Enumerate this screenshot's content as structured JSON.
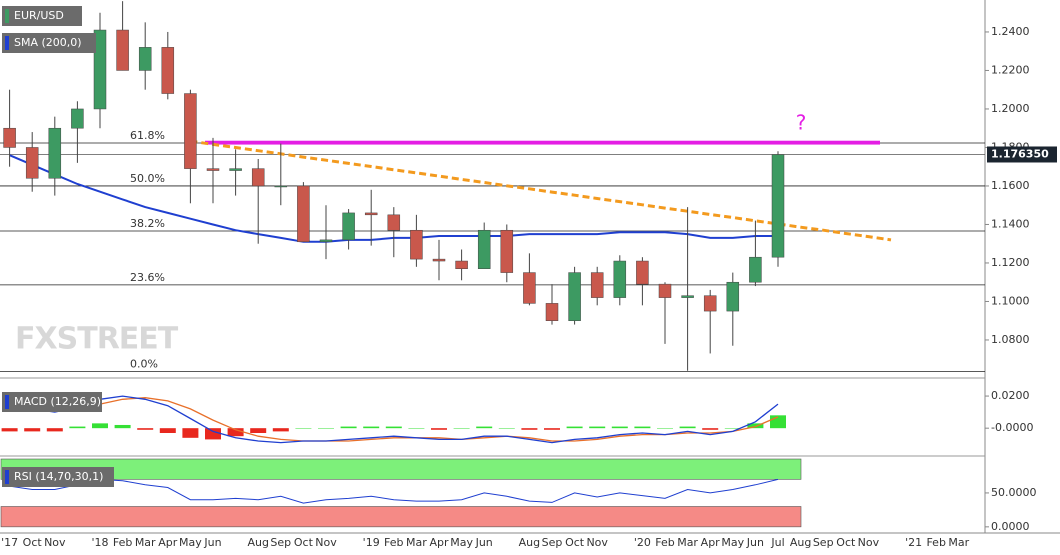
{
  "chart_data": {
    "type": "candlestick",
    "title": "EUR/USD",
    "watermark": "FXSTREET",
    "annotation": "?",
    "categories": [
      "'17",
      "Oct",
      "Nov",
      null,
      "'18",
      "Feb",
      "Mar",
      "Apr",
      "May",
      "Jun",
      null,
      "Aug",
      "Sep",
      "Oct",
      "Nov",
      null,
      "'19",
      "Feb",
      "Mar",
      "Apr",
      "May",
      "Jun",
      null,
      "Aug",
      "Sep",
      "Oct",
      "Nov",
      null,
      "'20",
      "Feb",
      "Mar",
      "Apr",
      "May",
      "Jun",
      "Jul",
      "Aug",
      "Sep",
      "Oct",
      "Nov",
      null,
      "'21",
      "Feb",
      "Mar"
    ],
    "open": [
      1.19,
      1.18,
      1.164,
      1.19,
      1.2,
      1.241,
      1.22,
      1.232,
      1.208,
      1.169,
      1.168,
      1.169,
      1.16,
      1.16,
      1.131,
      1.132,
      1.146,
      1.145,
      1.137,
      1.122,
      1.121,
      1.117,
      1.137,
      1.115,
      1.099,
      1.09,
      1.115,
      1.102,
      1.121,
      1.109,
      1.102,
      1.103,
      1.095,
      1.11,
      1.123,
      null,
      null,
      null,
      null,
      null,
      null,
      null,
      null
    ],
    "high": [
      1.21,
      1.188,
      1.196,
      1.204,
      1.25,
      1.256,
      1.245,
      1.24,
      1.21,
      1.185,
      1.179,
      1.174,
      1.182,
      1.162,
      1.15,
      1.148,
      1.158,
      1.149,
      1.145,
      1.132,
      1.127,
      1.141,
      1.14,
      1.125,
      1.109,
      1.118,
      1.118,
      1.124,
      1.123,
      1.11,
      1.149,
      1.106,
      1.115,
      1.142,
      1.178,
      null,
      null,
      null,
      null,
      null,
      null,
      null,
      null
    ],
    "low": [
      1.17,
      1.157,
      1.155,
      1.172,
      1.19,
      1.22,
      1.21,
      1.205,
      1.151,
      1.151,
      1.155,
      1.13,
      1.15,
      1.132,
      1.122,
      1.127,
      1.129,
      1.123,
      1.118,
      1.111,
      1.111,
      1.118,
      1.11,
      1.098,
      1.088,
      1.088,
      1.098,
      1.098,
      1.098,
      1.078,
      1.064,
      1.073,
      1.077,
      1.108,
      1.118,
      null,
      null,
      null,
      null,
      null,
      null,
      null,
      null
    ],
    "close": [
      1.18,
      1.164,
      1.19,
      1.2,
      1.241,
      1.22,
      1.232,
      1.208,
      1.169,
      1.168,
      1.169,
      1.16,
      1.16,
      1.131,
      1.132,
      1.146,
      1.145,
      1.137,
      1.122,
      1.121,
      1.117,
      1.137,
      1.115,
      1.099,
      1.09,
      1.115,
      1.102,
      1.121,
      1.109,
      1.102,
      1.103,
      1.095,
      1.11,
      1.123,
      1.1763,
      null,
      null,
      null,
      null,
      null,
      null,
      null,
      null
    ],
    "up_color": "#3d9a62",
    "down_color": "#c9584c",
    "ylim": [
      1.0618,
      1.2566
    ],
    "yticks": [
      {
        "value": 1.24,
        "label": "1.2400"
      },
      {
        "value": 1.22,
        "label": "1.2200"
      },
      {
        "value": 1.2,
        "label": "1.2000"
      },
      {
        "value": 1.18,
        "label": "1.1800"
      },
      {
        "value": 1.16,
        "label": "1.1600"
      },
      {
        "value": 1.14,
        "label": "1.1400"
      },
      {
        "value": 1.12,
        "label": "1.1200"
      },
      {
        "value": 1.1,
        "label": "1.1000"
      },
      {
        "value": 1.08,
        "label": "1.0800"
      }
    ],
    "current_price": {
      "value": 1.17635,
      "label": "1.176350"
    },
    "sma": {
      "name": "SMA (200,0)",
      "color": "#1f3fd0",
      "values": [
        1.176,
        1.171,
        1.166,
        1.161,
        1.157,
        1.153,
        1.149,
        1.146,
        1.143,
        1.14,
        1.137,
        1.135,
        1.133,
        1.131,
        1.131,
        1.132,
        1.132,
        1.133,
        1.133,
        1.134,
        1.134,
        1.134,
        1.134,
        1.135,
        1.135,
        1.135,
        1.135,
        1.136,
        1.136,
        1.136,
        1.135,
        1.133,
        1.133,
        1.134,
        1.134,
        null,
        null,
        null,
        null,
        null,
        null,
        null,
        null
      ]
    },
    "fib_levels": [
      {
        "value": 1.1823,
        "label": "61.8%"
      },
      {
        "value": 1.16,
        "label": "50.0%"
      },
      {
        "value": 1.1366,
        "label": "38.2%"
      },
      {
        "value": 1.1086,
        "label": "23.6%"
      },
      {
        "value": 1.0636,
        "label": "0.0%"
      }
    ],
    "resistance_zone": {
      "values": [
        1.1815,
        1.1835
      ],
      "color": "#e41ee4"
    },
    "trend_line": {
      "color": "#f39a1e",
      "values": [
        null,
        null,
        null,
        null,
        null,
        null,
        null,
        null,
        1.1833,
        1.1816,
        1.18,
        1.1783,
        1.1767,
        1.175,
        1.1734,
        1.1717,
        1.1701,
        1.1684,
        1.1668,
        1.1651,
        1.1634,
        1.1618,
        1.1601,
        1.1585,
        1.1568,
        1.1552,
        1.1535,
        1.1519,
        1.1502,
        1.1485,
        1.1469,
        1.1452,
        1.1436,
        1.1419,
        1.1403,
        1.1386,
        1.137,
        1.1353,
        1.1337,
        1.132,
        null,
        null,
        null
      ]
    },
    "macd": {
      "title": "MACD (12,26,9)",
      "ylim": [
        -0.0167,
        0.03
      ],
      "yticks": [
        {
          "value": 0.02,
          "label": "0.0200"
        },
        {
          "value": 0,
          "label": "-0.0000"
        }
      ],
      "macd_line": {
        "color": "#1f3fd0",
        "values": [
          0.014,
          0.012,
          0.01,
          0.013,
          0.018,
          0.02,
          0.018,
          0.014,
          0.006,
          -0.002,
          -0.006,
          -0.008,
          -0.009,
          -0.008,
          -0.008,
          -0.007,
          -0.006,
          -0.005,
          -0.006,
          -0.007,
          -0.007,
          -0.005,
          -0.005,
          -0.007,
          -0.009,
          -0.007,
          -0.006,
          -0.004,
          -0.003,
          -0.004,
          -0.002,
          -0.004,
          -0.002,
          0.004,
          0.015,
          null,
          null,
          null,
          null,
          null,
          null,
          null,
          null
        ]
      },
      "signal_line": {
        "color": "#e8702a",
        "values": [
          0.016,
          0.014,
          0.012,
          0.012,
          0.015,
          0.018,
          0.019,
          0.017,
          0.012,
          0.005,
          -0.001,
          -0.005,
          -0.007,
          -0.008,
          -0.008,
          -0.008,
          -0.007,
          -0.006,
          -0.006,
          -0.006,
          -0.007,
          -0.006,
          -0.005,
          -0.006,
          -0.008,
          -0.008,
          -0.007,
          -0.005,
          -0.004,
          -0.004,
          -0.003,
          -0.003,
          -0.002,
          0.001,
          0.007,
          null,
          null,
          null,
          null,
          null,
          null,
          null,
          null
        ]
      },
      "histogram": {
        "up_color": "#35e035",
        "down_color": "#e8281e",
        "values": [
          -0.002,
          -0.002,
          -0.002,
          0.001,
          0.003,
          0.002,
          -0.001,
          -0.003,
          -0.006,
          -0.007,
          -0.005,
          -0.003,
          -0.002,
          0,
          0,
          0.001,
          0.001,
          0.001,
          0,
          -0.001,
          0,
          0.001,
          0,
          -0.001,
          -0.001,
          0.001,
          0.001,
          0.001,
          0.001,
          0,
          0.001,
          -0.001,
          0,
          0.003,
          0.008,
          null,
          null,
          null,
          null,
          null,
          null,
          null,
          null
        ]
      }
    },
    "rsi": {
      "title": "RSI (14,70,30,1)",
      "ylim": [
        -7.6,
        101.5
      ],
      "yticks": [
        {
          "value": 50,
          "label": "50.0000"
        },
        {
          "value": 0,
          "label": "0.0000"
        }
      ],
      "overbought": [
        70,
        100
      ],
      "oversold": [
        0,
        30
      ],
      "color": "#1f3fd0",
      "values": [
        60,
        55,
        55,
        62,
        70,
        68,
        62,
        58,
        40,
        40,
        42,
        40,
        45,
        35,
        40,
        42,
        45,
        40,
        38,
        38,
        40,
        50,
        45,
        38,
        36,
        50,
        44,
        50,
        46,
        42,
        55,
        50,
        55,
        62,
        70,
        null,
        null,
        null,
        null,
        null,
        null,
        null,
        null
      ]
    }
  }
}
